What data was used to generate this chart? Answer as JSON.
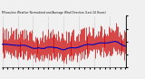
{
  "title": "Milwaukee Weather Normalized and Average Wind Direction (Last 24 Hours)",
  "background_color": "#f0f0f0",
  "plot_bg_color": "#f0f0f0",
  "grid_color": "#aaaaaa",
  "red_color": "#cc0000",
  "blue_color": "#0000bb",
  "ylim": [
    0,
    360
  ],
  "ytick_labels": [
    ".",
    ".",
    ".",
    ".",
    "."
  ],
  "num_points": 144,
  "seed": 7
}
